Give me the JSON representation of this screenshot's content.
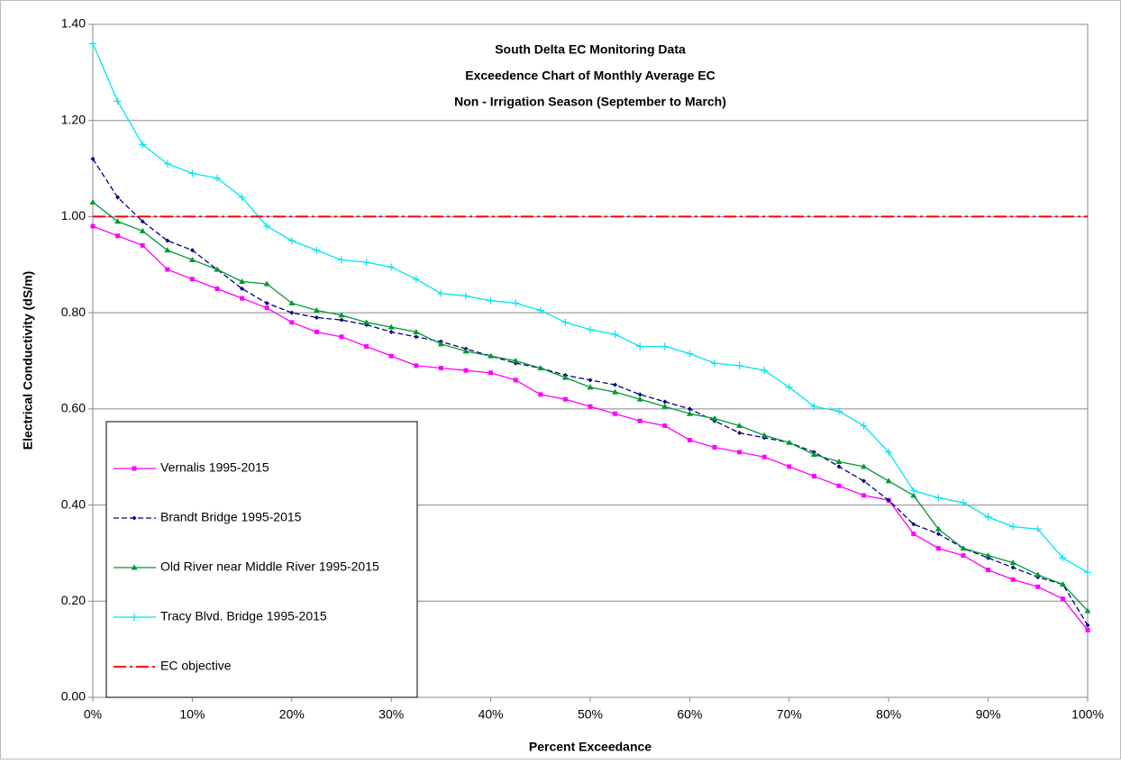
{
  "chart_data": {
    "type": "line",
    "title": "South Delta EC Monitoring Data",
    "subtitle": [
      "Exceedence Chart of Monthly Average EC",
      "Non - Irrigation Season (September to March)"
    ],
    "x_label": "Percent Exceedance",
    "y_label": "Electrical Conductivity (dS/m)",
    "x": [
      0,
      2.5,
      5,
      7.5,
      10,
      12.5,
      15,
      17.5,
      20,
      22.5,
      25,
      27.5,
      30,
      32.5,
      35,
      37.5,
      40,
      42.5,
      45,
      47.5,
      50,
      52.5,
      55,
      57.5,
      60,
      62.5,
      65,
      67.5,
      70,
      72.5,
      75,
      77.5,
      80,
      82.5,
      85,
      87.5,
      90,
      92.5,
      95,
      97.5,
      100
    ],
    "series": [
      {
        "name": "Vernalis 1995-2015",
        "color": "#ff00ff",
        "marker": "square",
        "dash": "none",
        "values": [
          0.98,
          0.96,
          0.94,
          0.89,
          0.87,
          0.85,
          0.83,
          0.81,
          0.78,
          0.76,
          0.75,
          0.73,
          0.71,
          0.69,
          0.685,
          0.68,
          0.675,
          0.66,
          0.63,
          0.62,
          0.605,
          0.59,
          0.575,
          0.565,
          0.535,
          0.52,
          0.51,
          0.5,
          0.48,
          0.46,
          0.44,
          0.42,
          0.41,
          0.34,
          0.31,
          0.295,
          0.265,
          0.245,
          0.23,
          0.205,
          0.14
        ]
      },
      {
        "name": "Brandt Bridge 1995-2015",
        "color": "#000080",
        "marker": "diamond",
        "dash": "6,3",
        "values": [
          1.12,
          1.04,
          0.99,
          0.95,
          0.93,
          0.89,
          0.85,
          0.82,
          0.8,
          0.79,
          0.785,
          0.775,
          0.76,
          0.75,
          0.74,
          0.725,
          0.71,
          0.695,
          0.685,
          0.67,
          0.66,
          0.65,
          0.63,
          0.615,
          0.6,
          0.575,
          0.55,
          0.54,
          0.53,
          0.51,
          0.48,
          0.45,
          0.41,
          0.36,
          0.34,
          0.31,
          0.29,
          0.27,
          0.25,
          0.235,
          0.15
        ]
      },
      {
        "name": "Old River near Middle River 1995-2015",
        "color": "#009933",
        "marker": "triangle",
        "dash": "none",
        "values": [
          1.03,
          0.99,
          0.97,
          0.93,
          0.91,
          0.89,
          0.865,
          0.86,
          0.82,
          0.805,
          0.795,
          0.78,
          0.77,
          0.76,
          0.735,
          0.72,
          0.71,
          0.7,
          0.685,
          0.665,
          0.645,
          0.635,
          0.62,
          0.605,
          0.59,
          0.58,
          0.565,
          0.545,
          0.53,
          0.505,
          0.49,
          0.48,
          0.45,
          0.42,
          0.35,
          0.31,
          0.295,
          0.28,
          0.255,
          0.235,
          0.18
        ]
      },
      {
        "name": "Tracy Blvd. Bridge 1995-2015",
        "color": "#00e5ee",
        "marker": "plus",
        "dash": "none",
        "values": [
          1.36,
          1.24,
          1.15,
          1.11,
          1.09,
          1.08,
          1.04,
          0.98,
          0.95,
          0.93,
          0.91,
          0.905,
          0.895,
          0.87,
          0.84,
          0.835,
          0.825,
          0.82,
          0.805,
          0.78,
          0.765,
          0.755,
          0.73,
          0.73,
          0.715,
          0.695,
          0.69,
          0.68,
          0.645,
          0.605,
          0.595,
          0.565,
          0.51,
          0.43,
          0.415,
          0.405,
          0.375,
          0.355,
          0.35,
          0.29,
          0.26
        ]
      },
      {
        "name": "EC objective",
        "color": "#ff0000",
        "marker": "none",
        "dash": "14,4,3,4",
        "x": [
          0,
          100
        ],
        "values": [
          1,
          1
        ]
      }
    ],
    "xlim": [
      0,
      100
    ],
    "xticks": [
      {
        "value": 0,
        "label": "0%"
      },
      {
        "value": 10,
        "label": "10%"
      },
      {
        "value": 20,
        "label": "20%"
      },
      {
        "value": 30,
        "label": "30%"
      },
      {
        "value": 40,
        "label": "40%"
      },
      {
        "value": 50,
        "label": "50%"
      },
      {
        "value": 60,
        "label": "60%"
      },
      {
        "value": 70,
        "label": "70%"
      },
      {
        "value": 80,
        "label": "80%"
      },
      {
        "value": 90,
        "label": "90%"
      },
      {
        "value": 100,
        "label": "100%"
      }
    ],
    "ylim": [
      0,
      1.4
    ],
    "yticks": [
      {
        "value": 0,
        "label": "0.00"
      },
      {
        "value": 0.2,
        "label": "0.20"
      },
      {
        "value": 0.4,
        "label": "0.40"
      },
      {
        "value": 0.6,
        "label": "0.60"
      },
      {
        "value": 0.8,
        "label": "0.80"
      },
      {
        "value": 1,
        "label": "1.00"
      },
      {
        "value": 1.2,
        "label": "1.20"
      },
      {
        "value": 1.4,
        "label": "1.40"
      }
    ],
    "grid": true
  }
}
